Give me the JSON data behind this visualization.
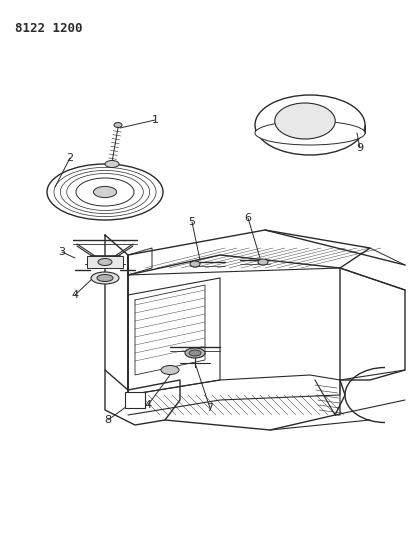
{
  "title_code": "8122 1200",
  "bg_color": "#ffffff",
  "line_color": "#2a2a2a",
  "figsize": [
    4.1,
    5.33
  ],
  "dpi": 100
}
